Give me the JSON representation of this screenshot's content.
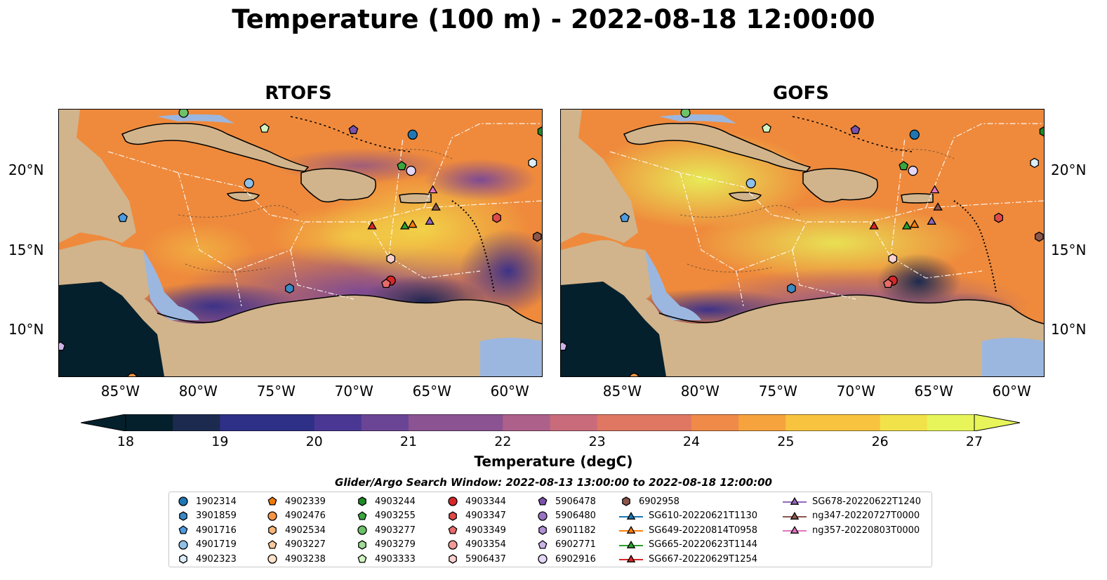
{
  "title": "Temperature (100 m) - 2022-08-18 12:00:00",
  "panels": [
    {
      "title": "RTOFS"
    },
    {
      "title": "GOFS"
    }
  ],
  "axes": {
    "lon_ticks": [
      "85°W",
      "80°W",
      "75°W",
      "70°W",
      "65°W",
      "60°W"
    ],
    "lat_ticks": [
      "20°N",
      "15°N",
      "10°N"
    ],
    "lon_range": [
      -89,
      -58
    ],
    "lat_range": [
      7,
      24
    ]
  },
  "colorbar": {
    "label": "Temperature (degC)",
    "ticks": [
      "18",
      "19",
      "20",
      "21",
      "22",
      "23",
      "24",
      "25",
      "26",
      "27"
    ],
    "range": [
      18,
      27
    ],
    "colormap": [
      "#04202c",
      "#1c2a4f",
      "#2e2f86",
      "#4a3794",
      "#6b4595",
      "#8b5391",
      "#ad618a",
      "#c96b7b",
      "#e07763",
      "#f08a48",
      "#f6a33e",
      "#f8c43f",
      "#f2e24a",
      "#e7f55a"
    ]
  },
  "colors": {
    "land": "#d1b48c",
    "shallow_water": "#9bb7e0",
    "coast": "#000000"
  },
  "search_window": "Glider/Argo Search Window: 2022-08-13 13:00:00 to 2022-08-18 12:00:00",
  "legend": [
    {
      "label": "1902314",
      "marker": "circle",
      "color": "#1f77b4"
    },
    {
      "label": "3901859",
      "marker": "hexagon",
      "color": "#3a8ac6"
    },
    {
      "label": "4901716",
      "marker": "pentagon",
      "color": "#4d9be0"
    },
    {
      "label": "4901719",
      "marker": "circle",
      "color": "#8fc0e8"
    },
    {
      "label": "4902323",
      "marker": "hexagon",
      "color": "#dbeefa"
    },
    {
      "label": "4902339",
      "marker": "pentagon",
      "color": "#ef7a0c"
    },
    {
      "label": "4902476",
      "marker": "circle",
      "color": "#f69644"
    },
    {
      "label": "4902534",
      "marker": "hexagon",
      "color": "#f7b67a"
    },
    {
      "label": "4903227",
      "marker": "pentagon",
      "color": "#f9c99f"
    },
    {
      "label": "4903238",
      "marker": "circle",
      "color": "#fde3c8"
    },
    {
      "label": "4903244",
      "marker": "hexagon",
      "color": "#1f8b26"
    },
    {
      "label": "4903255",
      "marker": "pentagon",
      "color": "#3aa63e"
    },
    {
      "label": "4903277",
      "marker": "circle",
      "color": "#6cc267"
    },
    {
      "label": "4903279",
      "marker": "hexagon",
      "color": "#9edb93"
    },
    {
      "label": "4903333",
      "marker": "pentagon",
      "color": "#d2f4c4"
    },
    {
      "label": "4903344",
      "marker": "circle",
      "color": "#d62728"
    },
    {
      "label": "4903347",
      "marker": "hexagon",
      "color": "#e04a4a"
    },
    {
      "label": "4903349",
      "marker": "pentagon",
      "color": "#e86b6b"
    },
    {
      "label": "4903354",
      "marker": "circle",
      "color": "#f29a98"
    },
    {
      "label": "5906437",
      "marker": "hexagon",
      "color": "#fbd1cf"
    },
    {
      "label": "5906478",
      "marker": "pentagon",
      "color": "#7b52ab"
    },
    {
      "label": "5906480",
      "marker": "circle",
      "color": "#9a74c2"
    },
    {
      "label": "6901182",
      "marker": "hexagon",
      "color": "#b191d6"
    },
    {
      "label": "6902771",
      "marker": "pentagon",
      "color": "#ccb3ea"
    },
    {
      "label": "6902916",
      "marker": "circle",
      "color": "#e4d6f7"
    },
    {
      "label": "6902958",
      "marker": "hexagon",
      "color": "#8c564b"
    },
    {
      "label": "SG610-20220621T1130",
      "marker": "triangle-line",
      "color": "#1f77b4"
    },
    {
      "label": "SG649-20220814T0958",
      "marker": "triangle-line",
      "color": "#ff7f0e"
    },
    {
      "label": "SG665-20220623T1144",
      "marker": "triangle-line",
      "color": "#2ca02c"
    },
    {
      "label": "SG667-20220629T1254",
      "marker": "triangle-line",
      "color": "#d62728"
    },
    {
      "label": "SG678-20220622T1240",
      "marker": "triangle-line",
      "color": "#9467bd"
    },
    {
      "label": "ng347-20220727T0000",
      "marker": "triangle-line",
      "color": "#8c564b"
    },
    {
      "label": "ng357-20220803T0000",
      "marker": "triangle-line",
      "color": "#e377c2"
    }
  ],
  "platforms": [
    {
      "id": "1902314",
      "lon": -66.3,
      "lat": 22.4
    },
    {
      "id": "3901859",
      "lon": -74.2,
      "lat": 12.6
    },
    {
      "id": "4901716",
      "lon": -84.9,
      "lat": 17.1
    },
    {
      "id": "4901719",
      "lon": -76.8,
      "lat": 19.3
    },
    {
      "id": "4902323",
      "lon": -58.6,
      "lat": 20.6
    },
    {
      "id": "4902476",
      "lon": -84.3,
      "lat": 6.9
    },
    {
      "id": "4903244",
      "lon": -58.0,
      "lat": 22.6
    },
    {
      "id": "4903255",
      "lon": -67.0,
      "lat": 20.4
    },
    {
      "id": "4903277",
      "lon": -81.0,
      "lat": 23.8
    },
    {
      "id": "4903333",
      "lon": -75.8,
      "lat": 22.8
    },
    {
      "id": "4903344",
      "lon": -67.7,
      "lat": 13.1
    },
    {
      "id": "4903347",
      "lon": -60.9,
      "lat": 17.1
    },
    {
      "id": "4903349",
      "lon": -68.0,
      "lat": 12.9
    },
    {
      "id": "5906437",
      "lon": -67.7,
      "lat": 14.5
    },
    {
      "id": "5906478",
      "lon": -70.1,
      "lat": 22.7
    },
    {
      "id": "6902771",
      "lon": -88.9,
      "lat": 8.9
    },
    {
      "id": "6902916",
      "lon": -66.4,
      "lat": 20.1
    },
    {
      "id": "6902958",
      "lon": -58.3,
      "lat": 15.9
    },
    {
      "id": "SG649-20220814T0958",
      "lon": -66.3,
      "lat": 16.7
    },
    {
      "id": "SG665-20220623T1144",
      "lon": -66.8,
      "lat": 16.6
    },
    {
      "id": "SG667-20220629T1254",
      "lon": -68.9,
      "lat": 16.6
    },
    {
      "id": "SG678-20220622T1240",
      "lon": -65.2,
      "lat": 16.9
    },
    {
      "id": "ng347-20220727T0000",
      "lon": -64.8,
      "lat": 17.8
    },
    {
      "id": "ng357-20220803T0000",
      "lon": -65.0,
      "lat": 18.9
    }
  ]
}
